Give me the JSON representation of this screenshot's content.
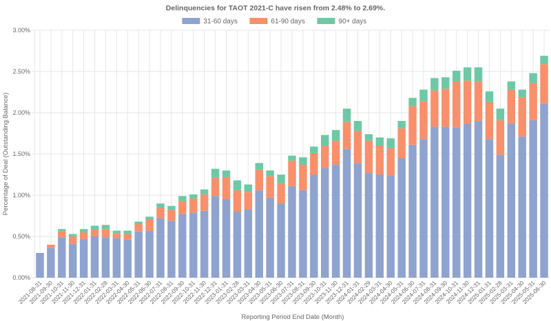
{
  "chart_data": {
    "type": "bar",
    "stacked": true,
    "title": "Delinquencies for TAOT 2021-C have risen from 2.48% to 2.69%.",
    "xlabel": "Reporting Period End Date (Month)",
    "ylabel": "Percentage of Deal (Outstanding Balance)",
    "ylim": [
      0,
      3.0
    ],
    "yticks": [
      "0.00%",
      "0.50%",
      "1.00%",
      "1.50%",
      "2.00%",
      "2.50%",
      "3.00%"
    ],
    "legend_position": "top-center",
    "categories": [
      "2021-08-31",
      "2021-09-30",
      "2021-10-31",
      "2021-11-30",
      "2021-12-31",
      "2022-01-31",
      "2022-02-28",
      "2022-03-31",
      "2022-04-30",
      "2022-05-31",
      "2022-06-30",
      "2022-07-31",
      "2022-08-31",
      "2022-09-30",
      "2022-10-31",
      "2022-11-30",
      "2022-12-31",
      "2023-01-31",
      "2023-02-28",
      "2023-03-31",
      "2023-04-30",
      "2023-05-31",
      "2023-06-30",
      "2023-07-31",
      "2023-08-31",
      "2023-09-30",
      "2023-10-31",
      "2023-11-30",
      "2023-12-31",
      "2024-01-31",
      "2024-02-29",
      "2024-03-31",
      "2024-04-30",
      "2024-05-31",
      "2024-06-30",
      "2024-07-31",
      "2024-08-31",
      "2024-09-30",
      "2024-10-31",
      "2024-11-30",
      "2024-12-31",
      "2025-01-31",
      "2025-02-28",
      "2025-03-31",
      "2025-04-30",
      "2025-05-31",
      "2025-06-30"
    ],
    "series": [
      {
        "name": "31-60 days",
        "color": "#8fa3cf",
        "values": [
          0.3,
          0.36,
          0.49,
          0.41,
          0.47,
          0.5,
          0.49,
          0.48,
          0.46,
          0.56,
          0.57,
          0.72,
          0.69,
          0.77,
          0.79,
          0.81,
          0.99,
          0.95,
          0.8,
          0.83,
          1.06,
          0.97,
          0.9,
          1.11,
          1.06,
          1.25,
          1.33,
          1.37,
          1.56,
          1.39,
          1.27,
          1.25,
          1.24,
          1.45,
          1.61,
          1.68,
          1.83,
          1.83,
          1.82,
          1.87,
          1.9,
          1.68,
          1.49,
          1.87,
          1.71,
          1.91,
          2.11
        ]
      },
      {
        "name": "61-90 days",
        "color": "#f9906b",
        "values": [
          0.0,
          0.04,
          0.07,
          0.09,
          0.08,
          0.08,
          0.1,
          0.06,
          0.07,
          0.09,
          0.13,
          0.13,
          0.13,
          0.16,
          0.17,
          0.2,
          0.22,
          0.27,
          0.26,
          0.21,
          0.25,
          0.26,
          0.24,
          0.31,
          0.31,
          0.26,
          0.27,
          0.29,
          0.33,
          0.39,
          0.39,
          0.35,
          0.33,
          0.36,
          0.47,
          0.46,
          0.44,
          0.46,
          0.56,
          0.52,
          0.48,
          0.45,
          0.42,
          0.41,
          0.48,
          0.45,
          0.48
        ]
      },
      {
        "name": "90+ days",
        "color": "#6dc9a5",
        "values": [
          0.0,
          0.0,
          0.03,
          0.03,
          0.04,
          0.05,
          0.05,
          0.03,
          0.04,
          0.03,
          0.04,
          0.05,
          0.05,
          0.06,
          0.05,
          0.06,
          0.11,
          0.08,
          0.12,
          0.09,
          0.08,
          0.07,
          0.11,
          0.06,
          0.09,
          0.08,
          0.13,
          0.13,
          0.16,
          0.12,
          0.08,
          0.1,
          0.12,
          0.09,
          0.1,
          0.14,
          0.15,
          0.14,
          0.13,
          0.16,
          0.17,
          0.13,
          0.14,
          0.1,
          0.09,
          0.12,
          0.1
        ]
      }
    ]
  }
}
